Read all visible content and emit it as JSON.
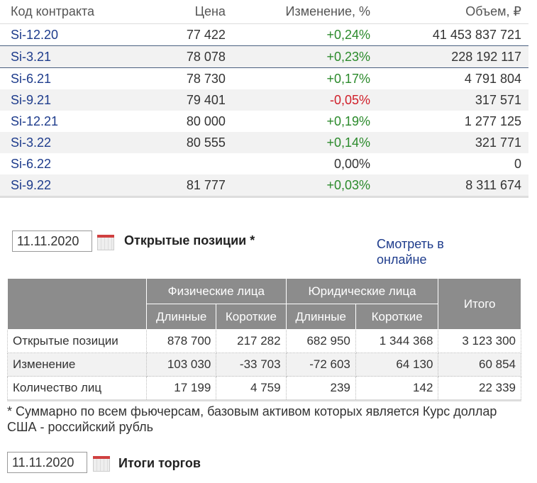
{
  "contracts": {
    "headers": [
      "Код контракта",
      "Цена",
      "Изменение, %",
      "Объем, ₽"
    ],
    "rows": [
      {
        "code": "Si-12.20",
        "price": "77 422",
        "change": "+0,24%",
        "volume": "41 453 837 721",
        "dir": "pos"
      },
      {
        "code": "Si-3.21",
        "price": "78 078",
        "change": "+0,23%",
        "volume": "228 192 117",
        "dir": "pos"
      },
      {
        "code": "Si-6.21",
        "price": "78 730",
        "change": "+0,17%",
        "volume": "4 791 804",
        "dir": "pos"
      },
      {
        "code": "Si-9.21",
        "price": "79 401",
        "change": "-0,05%",
        "volume": "317 571",
        "dir": "neg"
      },
      {
        "code": "Si-12.21",
        "price": "80 000",
        "change": "+0,19%",
        "volume": "1 277 125",
        "dir": "pos"
      },
      {
        "code": "Si-3.22",
        "price": "80 555",
        "change": "+0,14%",
        "volume": "321 771",
        "dir": "pos"
      },
      {
        "code": "Si-6.22",
        "price": "",
        "change": "0,00%",
        "volume": "0",
        "dir": "zero"
      },
      {
        "code": "Si-9.22",
        "price": "81 777",
        "change": "+0,03%",
        "volume": "8 311 674",
        "dir": "pos"
      }
    ],
    "colors": {
      "positive": "#2b8a2b",
      "negative": "#d0202a",
      "link": "#1e3c8c"
    }
  },
  "open_positions": {
    "date": "11.11.2020",
    "title": "Открытые позиции *",
    "online_link": "Смотреть в онлайне",
    "group_headers": [
      "Физические лица",
      "Юридические лица",
      "Итого"
    ],
    "sub_headers": [
      "Длинные",
      "Короткие",
      "Длинные",
      "Короткие"
    ],
    "rows": [
      {
        "label": "Открытые позиции",
        "values": [
          "878 700",
          "217 282",
          "682 950",
          "1 344 368",
          "3 123 300"
        ]
      },
      {
        "label": "Изменение",
        "values": [
          "103 030",
          "-33 703",
          "-72 603",
          "64 130",
          "60 854"
        ]
      },
      {
        "label": "Количество лиц",
        "values": [
          "17 199",
          "4 759",
          "239",
          "142",
          "22 339"
        ]
      }
    ],
    "footnote": "* Суммарно по всем фьючерсам, базовым активом которых является Курс доллар США - российский рубль"
  },
  "results": {
    "date": "11.11.2020",
    "title": "Итоги торгов"
  }
}
